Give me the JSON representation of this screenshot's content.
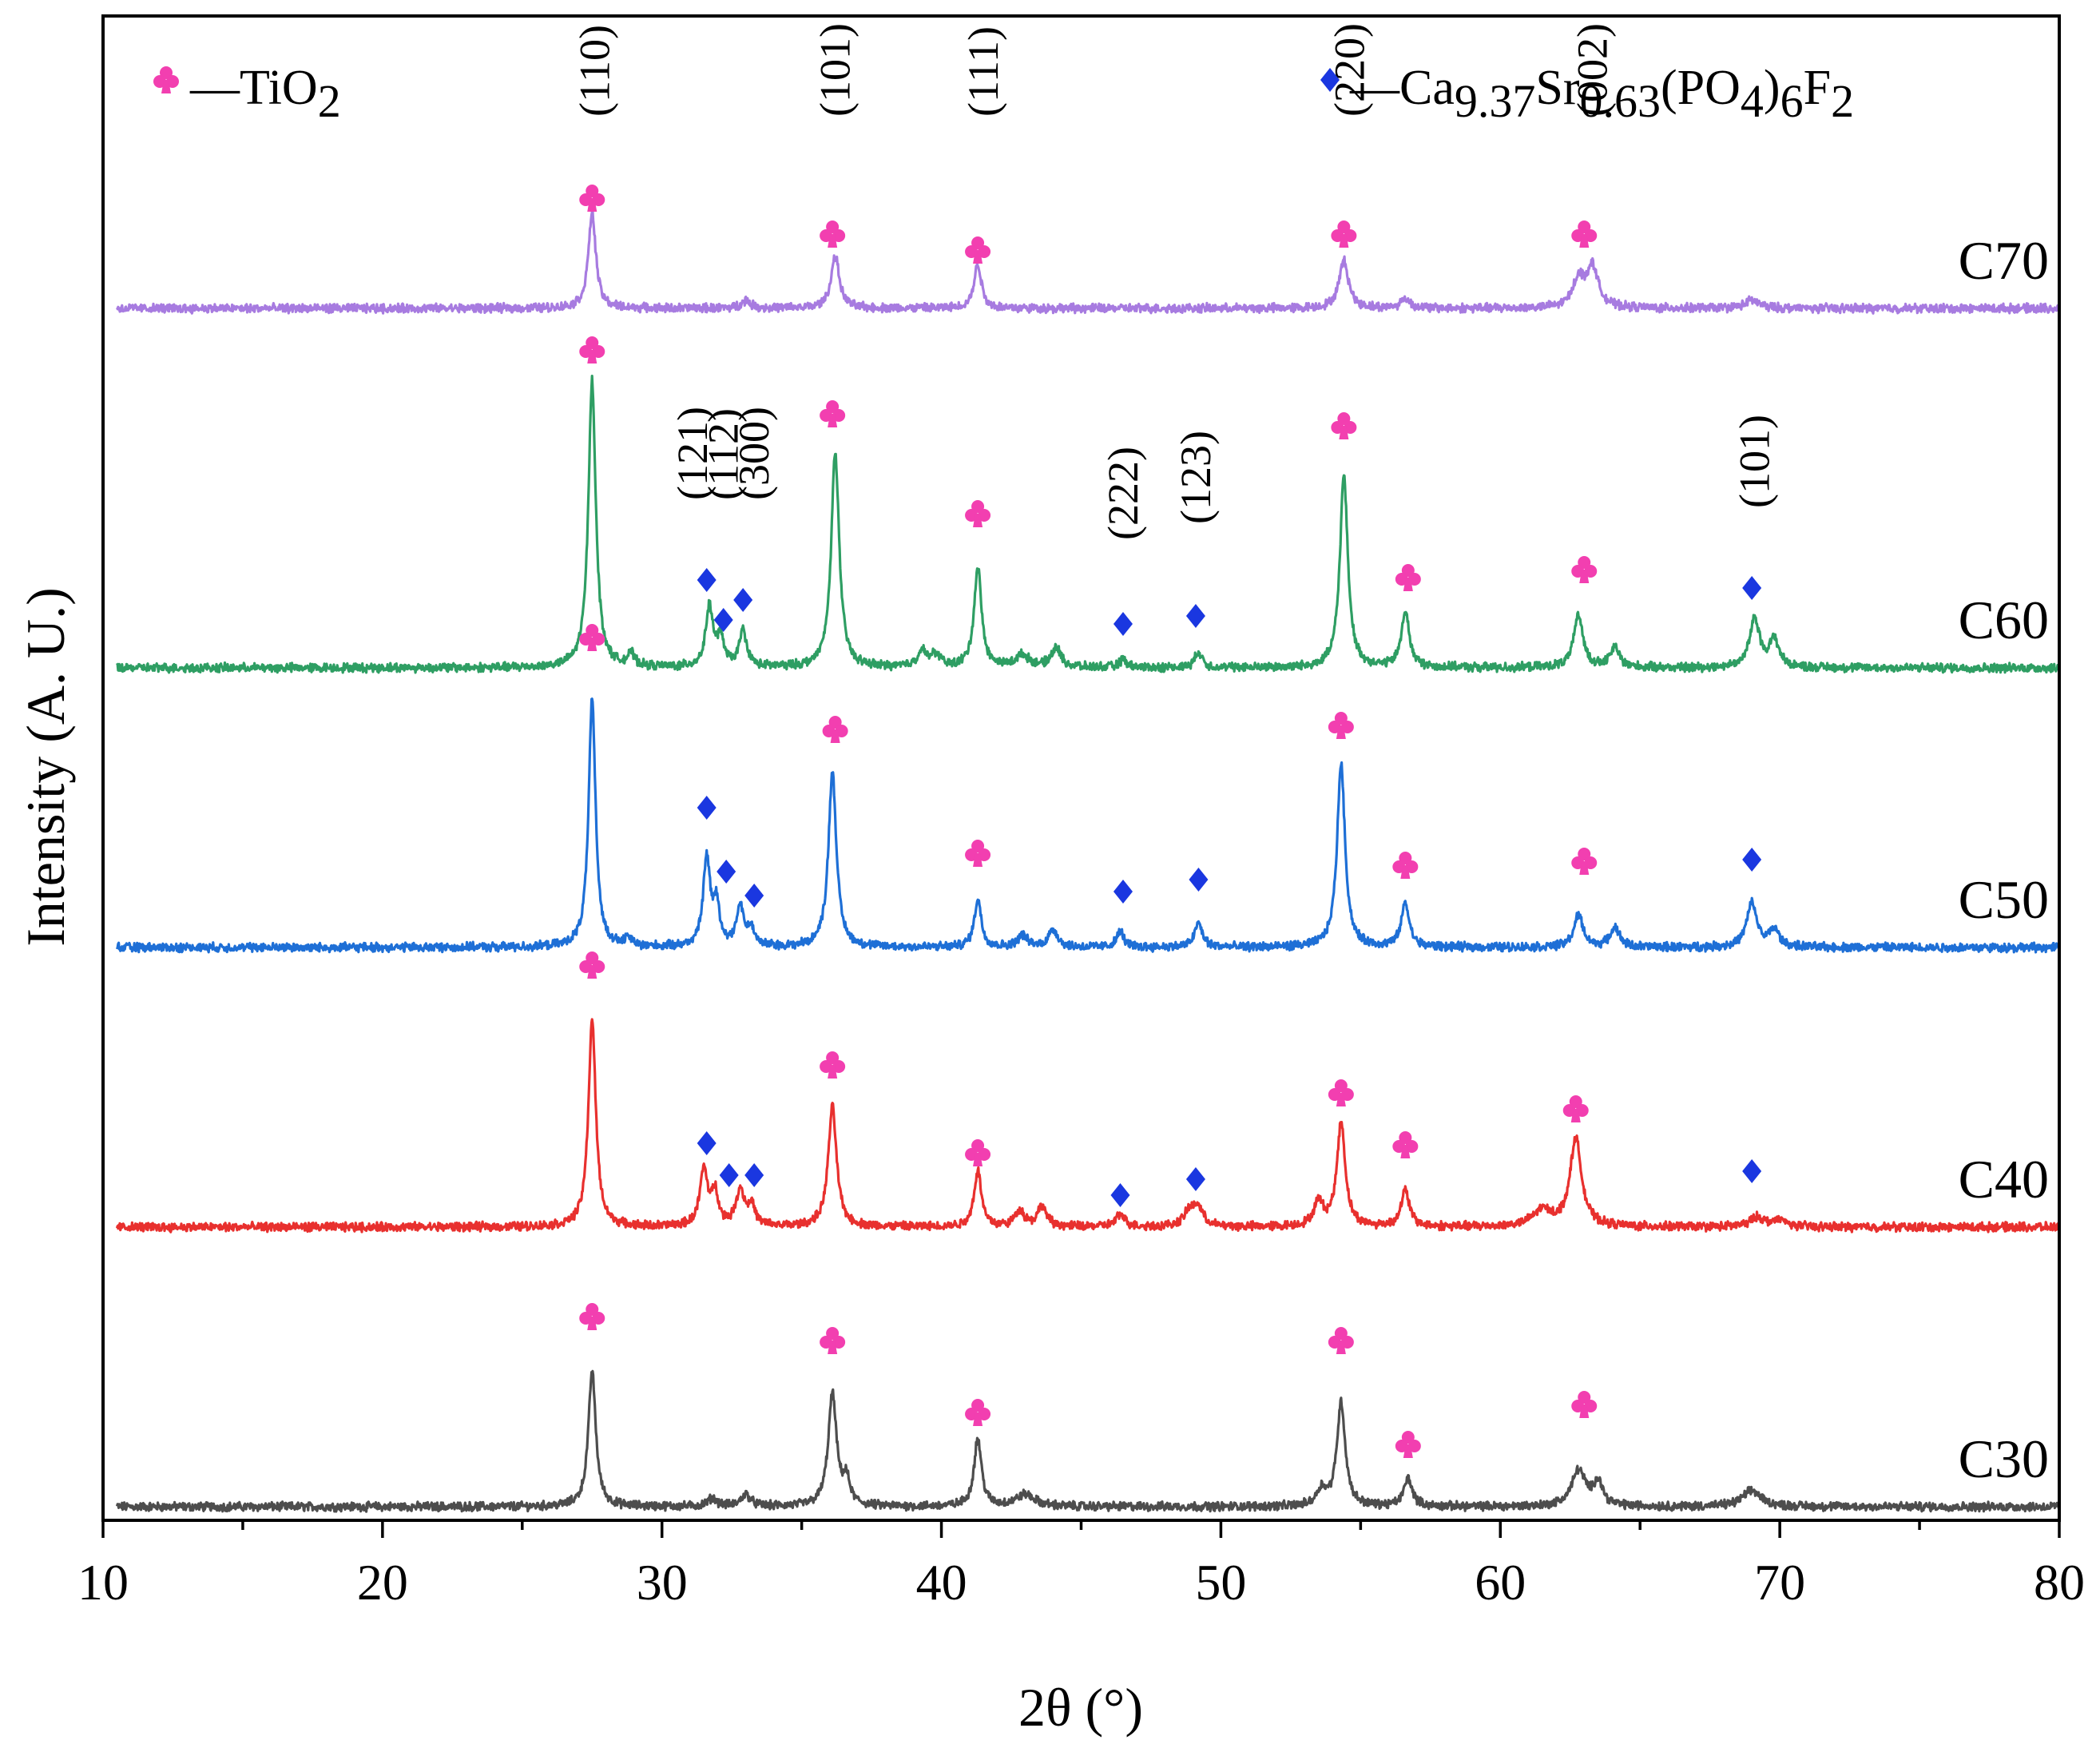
{
  "chart_data": {
    "type": "line",
    "title": "",
    "xlabel": "2θ (°)",
    "ylabel": "Intensity (A. U.)",
    "xlim": [
      10,
      80
    ],
    "x_major_ticks": [
      10,
      20,
      30,
      40,
      50,
      60,
      70,
      80
    ],
    "x_minor_step": 5,
    "legend": [
      {
        "symbol": "♣",
        "symbol_name": "club-marker",
        "color": "#f23fb0",
        "parts": [
          {
            "t": "—TiO"
          },
          {
            "t": "2",
            "sub": true
          }
        ]
      },
      {
        "symbol": "◆",
        "symbol_name": "diamond-marker",
        "color": "#1a37e0",
        "parts": [
          {
            "t": "—Ca"
          },
          {
            "t": "9.37",
            "sub": true
          },
          {
            "t": "Sr"
          },
          {
            "t": "0.63",
            "sub": true
          },
          {
            "t": "(PO"
          },
          {
            "t": "4",
            "sub": true
          },
          {
            "t": ")"
          },
          {
            "t": "6",
            "sub": true
          },
          {
            "t": "F"
          },
          {
            "t": "2",
            "sub": true
          }
        ]
      }
    ],
    "series": [
      {
        "name": "C30",
        "color": "#4d4d4d",
        "baseline": 0,
        "peaks": [
          [
            27.5,
            17,
            0.16
          ],
          [
            36.1,
            14,
            0.18
          ],
          [
            36.6,
            3,
            0.15
          ],
          [
            41.3,
            8.5,
            0.16
          ],
          [
            54.3,
            13,
            0.18
          ],
          [
            53.6,
            2,
            0.2
          ],
          [
            56.7,
            3.5,
            0.18
          ],
          [
            62.8,
            4.5,
            0.3
          ],
          [
            63.5,
            3,
            0.2
          ],
          [
            69.0,
            2,
            0.4
          ],
          [
            33.0,
            1.5,
            0.2
          ],
          [
            43.0,
            1.5,
            0.4
          ],
          [
            31.8,
            1,
            0.2
          ]
        ],
        "markers": [
          {
            "x": 27.5,
            "sym": "club",
            "lift": 24
          },
          {
            "x": 36.1,
            "sym": "club",
            "lift": 21
          },
          {
            "x": 41.3,
            "sym": "club",
            "lift": 12
          },
          {
            "x": 54.3,
            "sym": "club",
            "lift": 21
          },
          {
            "x": 56.7,
            "sym": "club",
            "lift": 8
          },
          {
            "x": 63.0,
            "sym": "club",
            "lift": 13
          }
        ]
      },
      {
        "name": "C40",
        "color": "#e8302e",
        "baseline": 35,
        "peaks": [
          [
            27.5,
            26,
            0.16
          ],
          [
            31.5,
            7,
            0.17
          ],
          [
            31.9,
            4,
            0.15
          ],
          [
            32.8,
            4.5,
            0.18
          ],
          [
            33.2,
            2.5,
            0.15
          ],
          [
            36.1,
            15,
            0.18
          ],
          [
            41.3,
            7,
            0.16
          ],
          [
            42.8,
            2,
            0.2
          ],
          [
            43.6,
            2.5,
            0.2
          ],
          [
            46.4,
            1.5,
            0.2
          ],
          [
            48.9,
            2,
            0.25
          ],
          [
            49.2,
            2,
            0.2
          ],
          [
            53.5,
            3,
            0.2
          ],
          [
            54.3,
            13,
            0.18
          ],
          [
            56.6,
            4.5,
            0.18
          ],
          [
            61.5,
            2,
            0.4
          ],
          [
            62.7,
            11,
            0.25
          ],
          [
            69.2,
            1.2,
            0.3
          ],
          [
            70.0,
            0.8,
            0.3
          ]
        ],
        "markers": [
          {
            "x": 27.5,
            "sym": "club",
            "lift": 33
          },
          {
            "x": 31.6,
            "sym": "diamond",
            "lift": 10.5
          },
          {
            "x": 32.4,
            "sym": "diamond",
            "lift": 6.5
          },
          {
            "x": 33.3,
            "sym": "diamond",
            "lift": 6.5
          },
          {
            "x": 36.1,
            "sym": "club",
            "lift": 20.5
          },
          {
            "x": 41.3,
            "sym": "club",
            "lift": 9.5
          },
          {
            "x": 46.4,
            "sym": "diamond",
            "lift": 4
          },
          {
            "x": 49.1,
            "sym": "diamond",
            "lift": 6
          },
          {
            "x": 54.3,
            "sym": "club",
            "lift": 17
          },
          {
            "x": 56.6,
            "sym": "club",
            "lift": 10.5
          },
          {
            "x": 62.7,
            "sym": "club",
            "lift": 15
          },
          {
            "x": 69.0,
            "sym": "diamond",
            "lift": 7
          }
        ]
      },
      {
        "name": "C50",
        "color": "#1e6fd6",
        "baseline": 70,
        "peaks": [
          [
            27.5,
            31,
            0.15
          ],
          [
            28.8,
            1,
            0.15
          ],
          [
            31.6,
            11,
            0.15
          ],
          [
            31.95,
            5,
            0.14
          ],
          [
            32.8,
            5,
            0.16
          ],
          [
            33.2,
            2,
            0.15
          ],
          [
            36.1,
            22,
            0.17
          ],
          [
            41.3,
            6,
            0.15
          ],
          [
            42.9,
            1.5,
            0.2
          ],
          [
            44.0,
            2.2,
            0.2
          ],
          [
            46.4,
            2,
            0.15
          ],
          [
            49.2,
            3,
            0.17
          ],
          [
            54.3,
            23,
            0.17
          ],
          [
            56.6,
            5.5,
            0.17
          ],
          [
            62.8,
            4,
            0.2
          ],
          [
            64.1,
            2.5,
            0.2
          ],
          [
            69.0,
            5.5,
            0.22
          ],
          [
            69.8,
            2.2,
            0.2
          ]
        ],
        "markers": [
          {
            "x": 27.5,
            "sym": "club",
            "lift": 39
          },
          {
            "x": 31.6,
            "sym": "diamond",
            "lift": 17.5
          },
          {
            "x": 32.3,
            "sym": "diamond",
            "lift": 9.5
          },
          {
            "x": 33.3,
            "sym": "diamond",
            "lift": 6.5
          },
          {
            "x": 36.2,
            "sym": "club",
            "lift": 27.5
          },
          {
            "x": 41.3,
            "sym": "club",
            "lift": 12
          },
          {
            "x": 46.5,
            "sym": "diamond",
            "lift": 7
          },
          {
            "x": 49.2,
            "sym": "diamond",
            "lift": 8.5
          },
          {
            "x": 54.3,
            "sym": "club",
            "lift": 28
          },
          {
            "x": 56.6,
            "sym": "club",
            "lift": 10.5
          },
          {
            "x": 63.0,
            "sym": "club",
            "lift": 11
          },
          {
            "x": 69.0,
            "sym": "diamond",
            "lift": 11
          }
        ],
        "hkl_labels": []
      },
      {
        "name": "C60",
        "color": "#2e9e63",
        "baseline": 105,
        "peaks": [
          [
            27.5,
            36,
            0.16
          ],
          [
            28.9,
            1.5,
            0.15
          ],
          [
            31.7,
            7.5,
            0.16
          ],
          [
            32.1,
            3.5,
            0.14
          ],
          [
            32.9,
            4.5,
            0.16
          ],
          [
            36.2,
            27,
            0.17
          ],
          [
            39.3,
            2,
            0.2
          ],
          [
            39.8,
            1.5,
            0.2
          ],
          [
            41.3,
            12.5,
            0.16
          ],
          [
            42.9,
            1.5,
            0.3
          ],
          [
            44.1,
            2.5,
            0.2
          ],
          [
            46.5,
            1,
            0.15
          ],
          [
            49.2,
            2,
            0.15
          ],
          [
            54.4,
            24,
            0.17
          ],
          [
            56.6,
            7,
            0.17
          ],
          [
            62.8,
            6.5,
            0.2
          ],
          [
            64.1,
            2.5,
            0.2
          ],
          [
            69.1,
            6,
            0.22
          ],
          [
            69.8,
            3.5,
            0.2
          ]
        ],
        "markers": [
          {
            "x": 27.5,
            "sym": "club",
            "lift": 40
          },
          {
            "x": 31.6,
            "sym": "diamond",
            "lift": 11
          },
          {
            "x": 32.2,
            "sym": "diamond",
            "lift": 6
          },
          {
            "x": 32.9,
            "sym": "diamond",
            "lift": 8.5
          },
          {
            "x": 36.1,
            "sym": "club",
            "lift": 32
          },
          {
            "x": 41.3,
            "sym": "club",
            "lift": 19.5
          },
          {
            "x": 46.5,
            "sym": "diamond",
            "lift": 5.5
          },
          {
            "x": 49.1,
            "sym": "diamond",
            "lift": 6.5
          },
          {
            "x": 54.4,
            "sym": "club",
            "lift": 30.5
          },
          {
            "x": 56.7,
            "sym": "club",
            "lift": 11.5
          },
          {
            "x": 63.0,
            "sym": "club",
            "lift": 12.5
          },
          {
            "x": 69.0,
            "sym": "diamond",
            "lift": 10
          }
        ]
      },
      {
        "name": "C70",
        "color": "#a77be0",
        "baseline": 150,
        "peaks": [
          [
            27.5,
            12,
            0.16
          ],
          [
            33.0,
            1,
            0.2
          ],
          [
            36.2,
            6.5,
            0.18
          ],
          [
            41.3,
            5.5,
            0.16
          ],
          [
            54.4,
            6,
            0.2
          ],
          [
            56.6,
            1.2,
            0.2
          ],
          [
            62.8,
            3.5,
            0.25
          ],
          [
            63.3,
            5,
            0.25
          ],
          [
            69.0,
            1,
            0.3
          ]
        ],
        "markers": [
          {
            "x": 27.5,
            "sym": "club",
            "lift": 14
          },
          {
            "x": 36.1,
            "sym": "club",
            "lift": 9.5
          },
          {
            "x": 41.3,
            "sym": "club",
            "lift": 7.5
          },
          {
            "x": 54.4,
            "sym": "club",
            "lift": 9.5
          },
          {
            "x": 63.0,
            "sym": "club",
            "lift": 9.5
          }
        ]
      }
    ],
    "annotations": [
      {
        "text": "(110)",
        "x": 27.6,
        "y": 174
      },
      {
        "text": "(101)",
        "x": 36.2,
        "y": 174
      },
      {
        "text": "(111)",
        "x": 41.5,
        "y": 174
      },
      {
        "text": "(220)",
        "x": 54.6,
        "y": 174
      },
      {
        "text": "(002)",
        "x": 63.3,
        "y": 174
      },
      {
        "text": "(121)",
        "x": 31.1,
        "y": 126
      },
      {
        "text": "(112)",
        "x": 32.2,
        "y": 126
      },
      {
        "text": "(300)",
        "x": 33.3,
        "y": 126
      },
      {
        "text": "(222)",
        "x": 46.5,
        "y": 121
      },
      {
        "text": "(123)",
        "x": 49.1,
        "y": 123
      },
      {
        "text": "(101)",
        "x": 69.1,
        "y": 125
      }
    ]
  }
}
